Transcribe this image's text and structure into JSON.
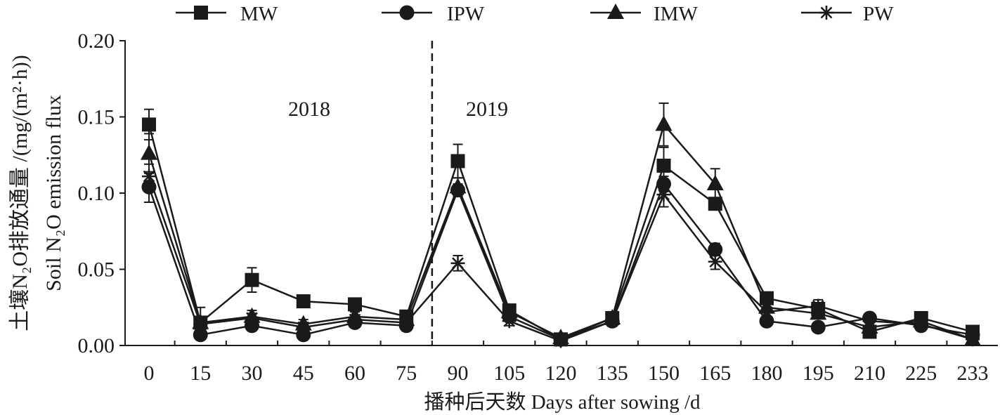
{
  "chart_data": {
    "type": "line",
    "x": [
      0,
      15,
      30,
      45,
      60,
      75,
      90,
      105,
      120,
      135,
      150,
      165,
      180,
      195,
      210,
      225,
      233
    ],
    "xlabel": "播种后天数 Days after sowing /d",
    "ylabel": [
      "土壤N₂O排放通量 /(mg/(m²·h))",
      "Soil N₂O emission flux"
    ],
    "ylim": [
      0,
      0.2
    ],
    "yticks": [
      "0.00",
      "0.05",
      "0.10",
      "0.15",
      "0.20"
    ],
    "grid": false,
    "legend": "top",
    "line_color": "#1a1a1a",
    "divider": {
      "between": [
        75,
        90
      ],
      "style": "dashed"
    },
    "annotations": [
      "2018",
      "2019"
    ],
    "series": [
      {
        "name": "MW",
        "marker": "square",
        "values": [
          0.145,
          0.015,
          0.043,
          0.029,
          0.027,
          0.019,
          0.121,
          0.023,
          0.004,
          0.018,
          0.118,
          0.093,
          0.031,
          0.024,
          0.009,
          0.018,
          0.009
        ],
        "errors": [
          0.01,
          0.01,
          0.008,
          0.002,
          0.003,
          0.003,
          0.011,
          0.003,
          0.002,
          0.003,
          0.012,
          0.004,
          0.003,
          0.004,
          0.003,
          0.003,
          0.002
        ]
      },
      {
        "name": "IPW",
        "marker": "circle",
        "values": [
          0.104,
          0.007,
          0.013,
          0.007,
          0.015,
          0.013,
          0.102,
          0.019,
          0.004,
          0.016,
          0.106,
          0.063,
          0.016,
          0.012,
          0.018,
          0.013,
          0.007
        ],
        "errors": [
          0.01,
          0.002,
          0.003,
          0.002,
          0.003,
          0.003,
          0.004,
          0.003,
          0.002,
          0.003,
          0.005,
          0.004,
          0.003,
          0.002,
          0.002,
          0.002,
          0.002
        ]
      },
      {
        "name": "IMW",
        "marker": "triangle",
        "values": [
          0.126,
          0.015,
          0.019,
          0.014,
          0.019,
          0.017,
          0.104,
          0.022,
          0.005,
          0.018,
          0.145,
          0.106,
          0.025,
          0.021,
          0.012,
          0.016,
          0.004
        ],
        "errors": [
          0.013,
          0.003,
          0.004,
          0.003,
          0.003,
          0.003,
          0.006,
          0.003,
          0.002,
          0.003,
          0.014,
          0.01,
          0.003,
          0.003,
          0.003,
          0.003,
          0.002
        ]
      },
      {
        "name": "PW",
        "marker": "asterisk",
        "values": [
          0.111,
          0.014,
          0.018,
          0.012,
          0.017,
          0.015,
          0.054,
          0.016,
          0.003,
          0.016,
          0.099,
          0.055,
          0.022,
          0.026,
          0.016,
          0.014,
          0.004
        ],
        "errors": [
          0.008,
          0.003,
          0.003,
          0.002,
          0.003,
          0.003,
          0.005,
          0.003,
          0.002,
          0.003,
          0.008,
          0.005,
          0.003,
          0.004,
          0.003,
          0.003,
          0.002
        ]
      }
    ]
  }
}
